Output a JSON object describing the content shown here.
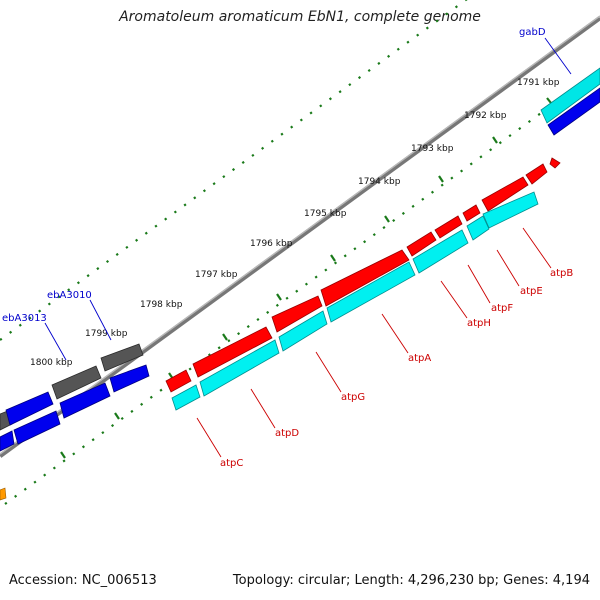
{
  "title": "Aromatoleum aromaticum EbN1, complete genome",
  "footer": {
    "accession": "Accession: NC_006513",
    "summary": "Topology: circular; Length: 4,296,230 bp; Genes: 4,194"
  },
  "colors": {
    "forward_cds": "#ff0000",
    "reverse_cds": "#00ffff",
    "other_forward": "#0000ff",
    "other_gray": "#606060",
    "tick_marks": "#1a7a1a",
    "label_forward": "#cc0000",
    "label_other": "#0000cc",
    "backbone": "#777777",
    "orange_feature": "#ff9900"
  },
  "scale": {
    "ticks": [
      {
        "label": "1791 kbp"
      },
      {
        "label": "1792 kbp"
      },
      {
        "label": "1793 kbp"
      },
      {
        "label": "1794 kbp"
      },
      {
        "label": "1795 kbp"
      },
      {
        "label": "1796 kbp"
      },
      {
        "label": "1797 kbp"
      },
      {
        "label": "1798 kbp"
      },
      {
        "label": "1799 kbp"
      },
      {
        "label": "1800 kbp"
      }
    ]
  },
  "genes": {
    "gabD": "gabD",
    "atpB": "atpB",
    "atpE": "atpE",
    "atpF": "atpF",
    "atpH": "atpH",
    "atpA": "atpA",
    "atpG": "atpG",
    "atpD": "atpD",
    "atpC": "atpC",
    "ebA3010": "ebA3010",
    "ebA3013": "ebA3013"
  }
}
